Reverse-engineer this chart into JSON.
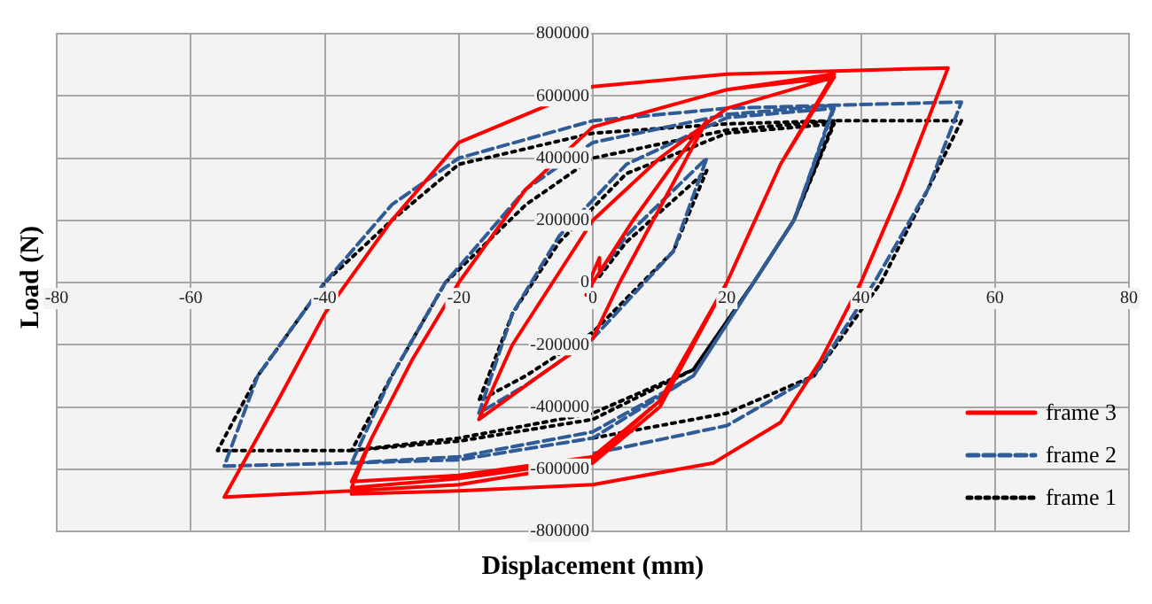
{
  "chart_data": {
    "type": "line",
    "xlabel": "Displacement (mm)",
    "ylabel": "Load (N)",
    "xlim": [
      -80,
      80
    ],
    "xticks": [
      -80,
      -60,
      -40,
      -20,
      0,
      20,
      40,
      60,
      80
    ],
    "ylim": [
      -800000,
      800000
    ],
    "yticks": [
      -800000,
      -600000,
      -400000,
      -200000,
      0,
      200000,
      400000,
      600000,
      800000
    ],
    "grid": true,
    "legend": "bottom right",
    "marker": "none",
    "series": [
      {
        "name": "frame 3",
        "color": "#ff0000",
        "line_style": "solid",
        "x": [
          1,
          1,
          0,
          -1,
          0,
          6,
          12,
          17,
          10,
          4,
          0,
          -8,
          -17,
          -12,
          -6,
          0,
          10,
          20,
          36,
          28,
          20,
          10,
          0,
          -20,
          -36,
          -33,
          -27,
          -20,
          -10,
          0,
          20,
          36,
          28,
          20,
          10,
          0,
          -20,
          -36,
          -33,
          -27,
          -20,
          -10,
          0,
          20,
          36,
          28,
          20,
          10,
          0,
          -20,
          -36,
          -55,
          -47,
          -40,
          -30,
          -20,
          0,
          20,
          36,
          53,
          46,
          40,
          34,
          28,
          18,
          0,
          -20,
          -36
        ],
        "values": [
          40000,
          80000,
          30000,
          -40000,
          0,
          200000,
          380000,
          520000,
          240000,
          0,
          -180000,
          -300000,
          -440000,
          -200000,
          0,
          200000,
          400000,
          560000,
          660000,
          380000,
          0,
          -380000,
          -560000,
          -620000,
          -640000,
          -500000,
          -250000,
          0,
          300000,
          500000,
          620000,
          660000,
          380000,
          0,
          -380000,
          -570000,
          -630000,
          -660000,
          -500000,
          -250000,
          0,
          300000,
          500000,
          620000,
          670000,
          380000,
          0,
          -400000,
          -580000,
          -650000,
          -670000,
          -690000,
          -380000,
          -100000,
          200000,
          450000,
          630000,
          670000,
          680000,
          690000,
          300000,
          0,
          -250000,
          -450000,
          -580000,
          -650000,
          -670000,
          -680000
        ]
      },
      {
        "name": "frame 2",
        "color": "#2f5c96",
        "line_style": "dashed",
        "x": [
          1,
          5,
          17,
          12,
          0,
          -10,
          -17,
          -12,
          -5,
          5,
          20,
          36,
          30,
          24,
          15,
          0,
          -20,
          -36,
          -30,
          -22,
          -10,
          0,
          20,
          36,
          30,
          24,
          15,
          0,
          -20,
          -36,
          -55,
          -50,
          -40,
          -30,
          -20,
          0,
          20,
          36,
          55,
          50,
          42,
          33,
          20,
          0
        ],
        "values": [
          30000,
          150000,
          400000,
          100000,
          -180000,
          -330000,
          -420000,
          -100000,
          150000,
          380000,
          530000,
          560000,
          200000,
          0,
          -300000,
          -480000,
          -560000,
          -580000,
          -300000,
          0,
          300000,
          450000,
          540000,
          570000,
          200000,
          0,
          -300000,
          -500000,
          -570000,
          -580000,
          -590000,
          -300000,
          0,
          250000,
          400000,
          520000,
          560000,
          570000,
          580000,
          300000,
          0,
          -300000,
          -460000,
          -550000
        ]
      },
      {
        "name": "frame 1",
        "color": "#000000",
        "line_style": "dotted",
        "x": [
          1,
          5,
          17,
          12,
          0,
          -10,
          -17,
          -12,
          -5,
          5,
          20,
          36,
          30,
          24,
          15,
          0,
          -20,
          -36,
          -30,
          -22,
          -10,
          0,
          20,
          36,
          30,
          24,
          15,
          0,
          -20,
          -36,
          -56,
          -50,
          -40,
          -30,
          -20,
          0,
          20,
          36,
          55,
          50,
          43,
          33,
          20,
          0
        ],
        "values": [
          20000,
          130000,
          360000,
          100000,
          -160000,
          -300000,
          -380000,
          -100000,
          130000,
          350000,
          480000,
          510000,
          200000,
          0,
          -280000,
          -420000,
          -500000,
          -540000,
          -300000,
          0,
          250000,
          400000,
          490000,
          520000,
          200000,
          0,
          -280000,
          -440000,
          -510000,
          -540000,
          -540000,
          -300000,
          0,
          200000,
          380000,
          480000,
          510000,
          520000,
          520000,
          300000,
          0,
          -300000,
          -420000,
          -500000
        ]
      }
    ]
  }
}
